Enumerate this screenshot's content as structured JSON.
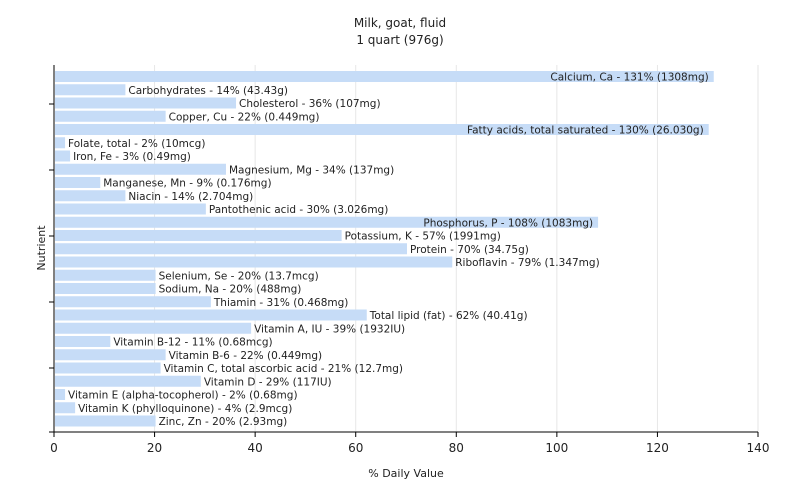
{
  "chart_data": {
    "type": "bar",
    "orientation": "horizontal",
    "title": "Milk, goat, fluid",
    "subtitle": "1 quart (976g)",
    "xlabel": "% Daily Value",
    "ylabel": "Nutrient",
    "xlim": [
      0,
      140
    ],
    "xticks": [
      "0",
      "20",
      "40",
      "60",
      "80",
      "100",
      "120",
      "140"
    ],
    "grid": true,
    "bar_color": "#c6dcf7",
    "categories": [
      "Calcium, Ca - 131% (1308mg)",
      "Carbohydrates - 14% (43.43g)",
      "Cholesterol - 36% (107mg)",
      "Copper, Cu - 22% (0.449mg)",
      "Fatty acids, total saturated - 130% (26.030g)",
      "Folate, total - 2% (10mcg)",
      "Iron, Fe - 3% (0.49mg)",
      "Magnesium, Mg - 34% (137mg)",
      "Manganese, Mn - 9% (0.176mg)",
      "Niacin - 14% (2.704mg)",
      "Pantothenic acid - 30% (3.026mg)",
      "Phosphorus, P - 108% (1083mg)",
      "Potassium, K - 57% (1991mg)",
      "Protein - 70% (34.75g)",
      "Riboflavin - 79% (1.347mg)",
      "Selenium, Se - 20% (13.7mcg)",
      "Sodium, Na - 20% (488mg)",
      "Thiamin - 31% (0.468mg)",
      "Total lipid (fat) - 62% (40.41g)",
      "Vitamin A, IU - 39% (1932IU)",
      "Vitamin B-12 - 11% (0.68mcg)",
      "Vitamin B-6 - 22% (0.449mg)",
      "Vitamin C, total ascorbic acid - 21% (12.7mg)",
      "Vitamin D - 29% (117IU)",
      "Vitamin E (alpha-tocopherol) - 2% (0.68mg)",
      "Vitamin K (phylloquinone) - 4% (2.9mcg)",
      "Zinc, Zn - 20% (2.93mg)"
    ],
    "values": [
      131,
      14,
      36,
      22,
      130,
      2,
      3,
      34,
      9,
      14,
      30,
      108,
      57,
      70,
      79,
      20,
      20,
      31,
      62,
      39,
      11,
      22,
      21,
      29,
      2,
      4,
      20
    ]
  }
}
